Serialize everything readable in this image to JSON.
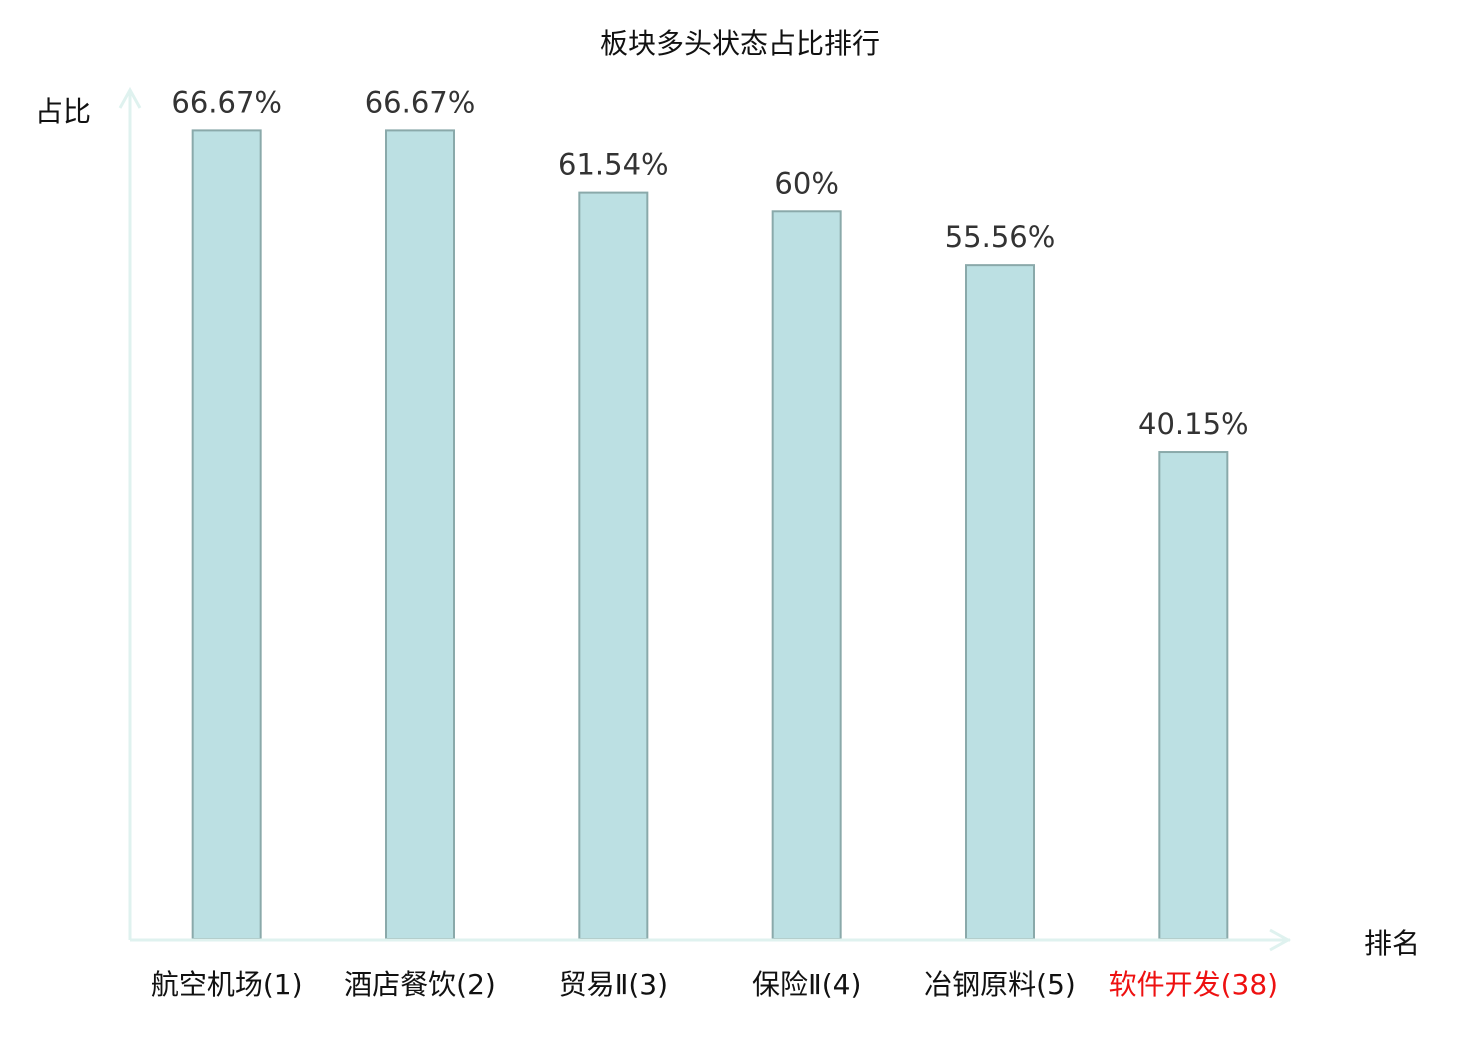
{
  "chart_data": {
    "type": "bar",
    "title": "板块多头状态占比排行",
    "xlabel": "排名",
    "ylabel": "占比",
    "ylim": [
      0,
      70
    ],
    "grid": false,
    "categories": [
      "航空机场(1)",
      "酒店餐饮(2)",
      "贸易Ⅱ(3)",
      "保险Ⅱ(4)",
      "冶钢原料(5)",
      "软件开发(38)"
    ],
    "values": [
      66.67,
      66.67,
      61.54,
      60,
      55.56,
      40.15
    ],
    "data_labels": [
      "66.67%",
      "66.67%",
      "61.54%",
      "60%",
      "55.56%",
      "40.15%"
    ],
    "highlight_index": 5,
    "colors": {
      "bar_fill": "#bce0e3",
      "bar_stroke": "#8aa9aa",
      "axis": "#dff2ef",
      "text": "#111111",
      "data_label": "#333333",
      "highlight": "#ee1111"
    }
  }
}
